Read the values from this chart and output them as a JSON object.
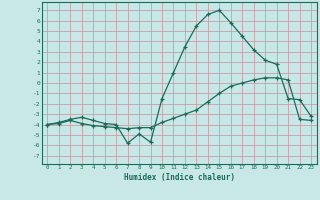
{
  "title": "",
  "xlabel": "Humidex (Indice chaleur)",
  "background_color": "#c8e8e8",
  "grid_color": "#c8a0a8",
  "line_color": "#1a6b5a",
  "x_ticks": [
    0,
    1,
    2,
    3,
    4,
    5,
    6,
    7,
    8,
    9,
    10,
    11,
    12,
    13,
    14,
    15,
    16,
    17,
    18,
    19,
    20,
    21,
    22,
    23
  ],
  "y_ticks": [
    -7,
    -6,
    -5,
    -4,
    -3,
    -2,
    -1,
    0,
    1,
    2,
    3,
    4,
    5,
    6,
    7
  ],
  "xlim": [
    -0.5,
    23.5
  ],
  "ylim": [
    -7.8,
    7.8
  ],
  "line1_x": [
    0,
    1,
    2,
    3,
    4,
    5,
    6,
    7,
    8,
    9,
    10,
    11,
    12,
    13,
    14,
    15,
    16,
    17,
    18,
    19,
    20,
    21,
    22,
    23
  ],
  "line1_y": [
    -4.0,
    -3.8,
    -3.5,
    -3.3,
    -3.6,
    -3.9,
    -4.0,
    -5.8,
    -4.9,
    -5.7,
    -1.5,
    1.0,
    3.5,
    5.5,
    6.6,
    7.0,
    5.8,
    4.5,
    3.2,
    2.2,
    1.8,
    -1.5,
    -1.6,
    -3.2
  ],
  "line2_x": [
    0,
    1,
    2,
    3,
    4,
    5,
    6,
    7,
    8,
    9,
    10,
    11,
    12,
    13,
    14,
    15,
    16,
    17,
    18,
    19,
    20,
    21,
    22,
    23
  ],
  "line2_y": [
    -4.0,
    -3.9,
    -3.6,
    -3.9,
    -4.1,
    -4.2,
    -4.3,
    -4.4,
    -4.3,
    -4.3,
    -3.8,
    -3.4,
    -3.0,
    -2.6,
    -1.8,
    -1.0,
    -0.3,
    0.0,
    0.3,
    0.5,
    0.5,
    0.3,
    -3.5,
    -3.6
  ]
}
